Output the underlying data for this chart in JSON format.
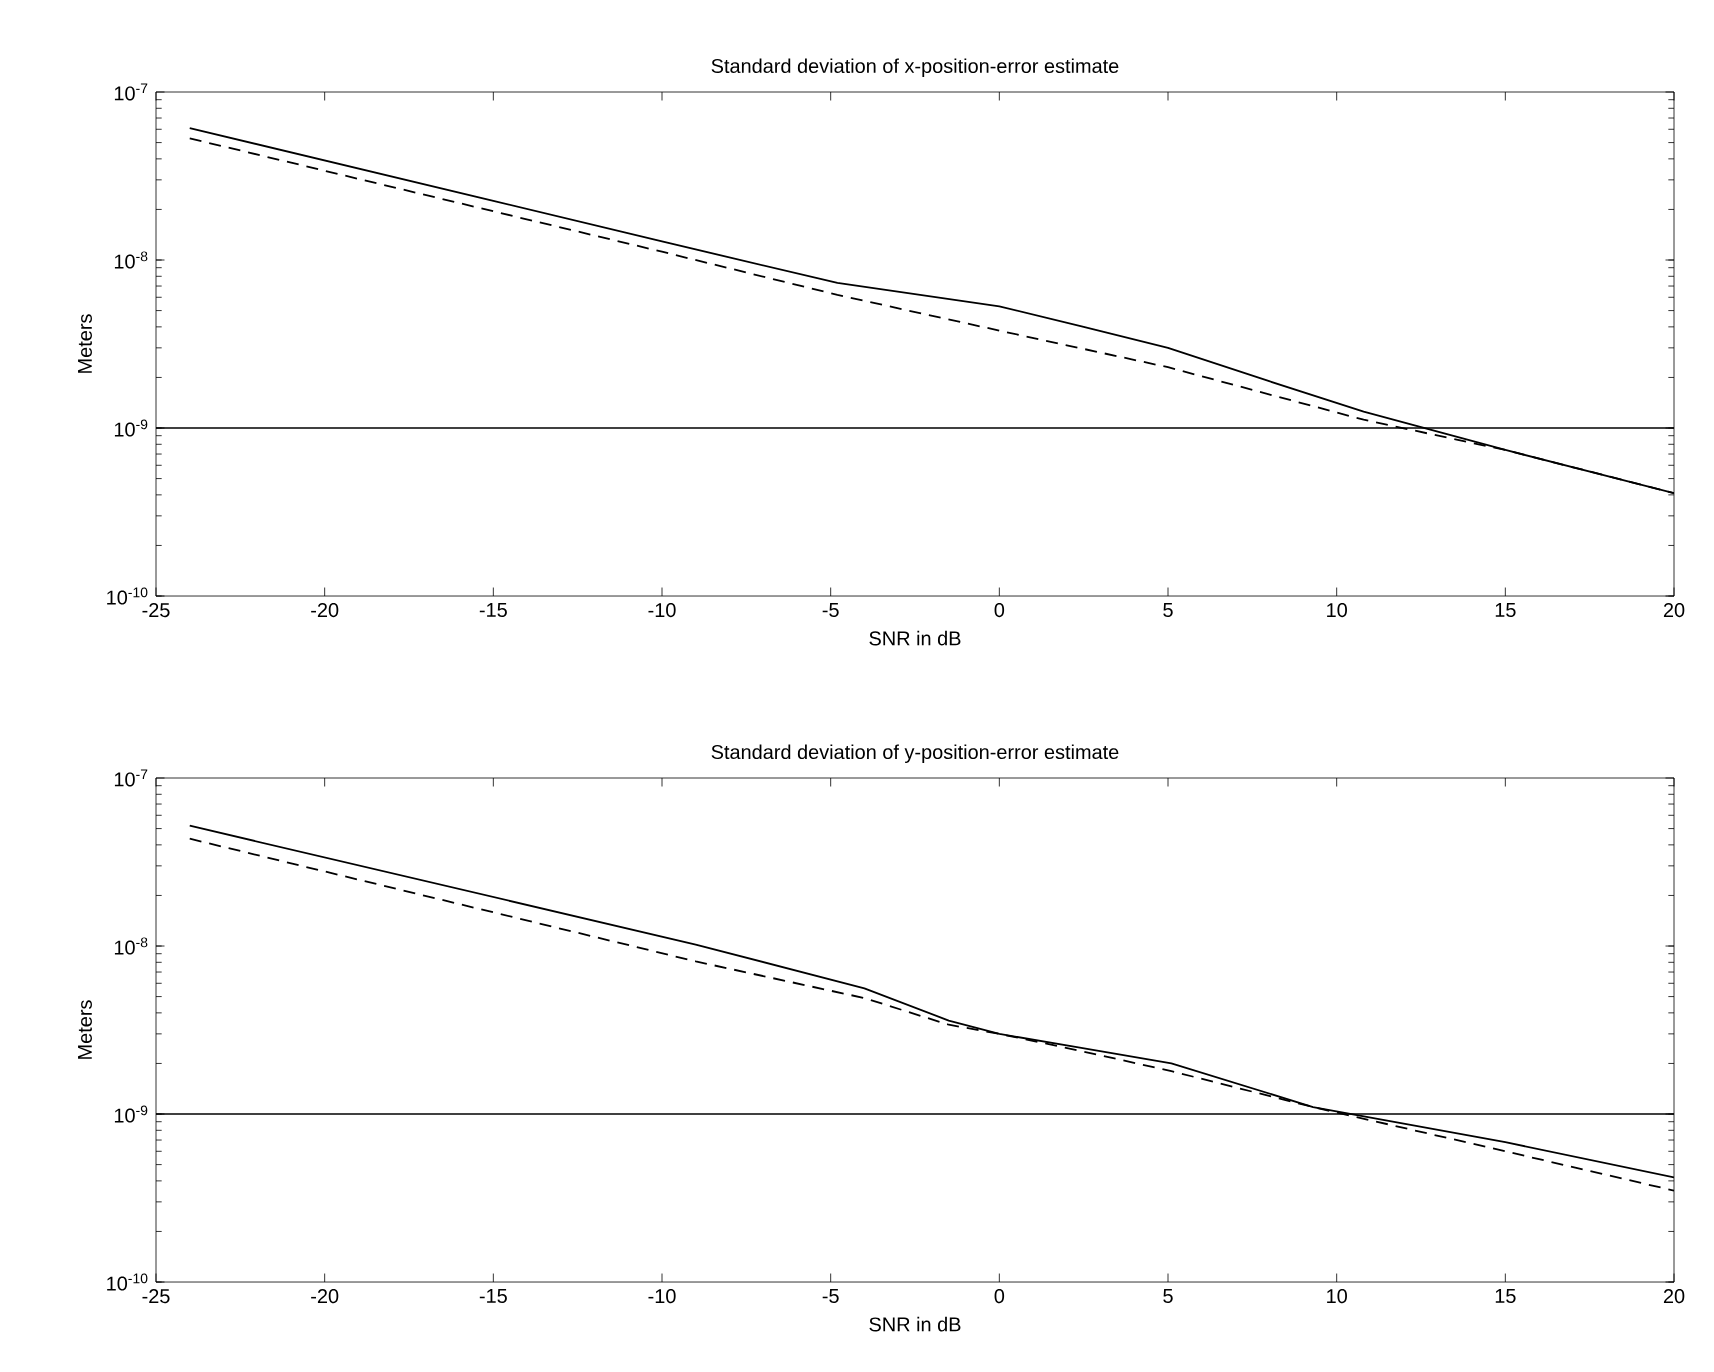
{
  "chart_data": [
    {
      "type": "line",
      "title": "Standard deviation of x-position-error estimate",
      "xlabel": "SNR in dB",
      "ylabel": "Meters",
      "log": "y",
      "xlim": [
        -25,
        20
      ],
      "ylim": [
        1e-10,
        1e-07
      ],
      "xticks": [
        -25,
        -20,
        -15,
        -10,
        -5,
        0,
        5,
        10,
        15,
        20
      ],
      "yticks": [
        {
          "value": 1e-10,
          "label": "10$^{-10}$"
        },
        {
          "value": 1e-09,
          "label": "10$^{-9}$"
        },
        {
          "value": 1e-08,
          "label": "10$^{-8}$"
        },
        {
          "value": 1e-07,
          "label": "10$^{-7}$"
        }
      ],
      "series": [
        {
          "color": "#000000",
          "line_style": "solid",
          "x": [
            -24,
            -15,
            -10,
            -4.8,
            0,
            2.5,
            5,
            8,
            10.8,
            15,
            20
          ],
          "values": [
            6.1e-08,
            2.25e-08,
            1.29e-08,
            7.3e-09,
            5.3e-09,
            4e-09,
            3e-09,
            1.9e-09,
            1.25e-09,
            7.4e-10,
            4.1e-10
          ]
        },
        {
          "color": "#000000",
          "line_style": "dashed",
          "x": [
            -24,
            -15,
            -10,
            -4.8,
            0,
            5,
            10.8,
            15,
            20
          ],
          "values": [
            5.3e-08,
            1.95e-08,
            1.12e-08,
            6.2e-09,
            3.8e-09,
            2.3e-09,
            1.12e-09,
            7.4e-10,
            4.1e-10
          ]
        }
      ],
      "ref_lines": [
        {
          "axis": "y",
          "value": 1e-09,
          "color": "#000000"
        }
      ]
    },
    {
      "type": "line",
      "title": "Standard deviation of y-position-error estimate",
      "xlabel": "SNR in dB",
      "ylabel": "Meters",
      "log": "y",
      "xlim": [
        -25,
        20
      ],
      "ylim": [
        1e-10,
        1e-07
      ],
      "xticks": [
        -25,
        -20,
        -15,
        -10,
        -5,
        0,
        5,
        10,
        15,
        20
      ],
      "yticks": [
        {
          "value": 1e-10,
          "label": "10$^{-10}$"
        },
        {
          "value": 1e-09,
          "label": "10$^{-9}$"
        },
        {
          "value": 1e-08,
          "label": "10$^{-8}$"
        },
        {
          "value": 1e-07,
          "label": "10$^{-7}$"
        }
      ],
      "series": [
        {
          "color": "#000000",
          "line_style": "solid",
          "x": [
            -24,
            -9,
            -4,
            -1.5,
            0,
            2.3,
            5.1,
            9.3,
            15,
            20
          ],
          "values": [
            5.2e-08,
            1.02e-08,
            5.6e-09,
            3.6e-09,
            3e-09,
            2.5e-09,
            2e-09,
            1.1e-09,
            6.8e-10,
            4.2e-10
          ]
        },
        {
          "color": "#000000",
          "line_style": "dashed",
          "x": [
            -24,
            -9,
            -4,
            -1.5,
            0,
            2.3,
            5.1,
            9.3,
            15,
            20
          ],
          "values": [
            4.35e-08,
            8.1e-09,
            4.9e-09,
            3.4e-09,
            3e-09,
            2.4e-09,
            1.8e-09,
            1.1e-09,
            6e-10,
            3.5e-10
          ]
        }
      ],
      "ref_lines": [
        {
          "axis": "y",
          "value": 1e-09,
          "color": "#000000"
        }
      ]
    }
  ]
}
